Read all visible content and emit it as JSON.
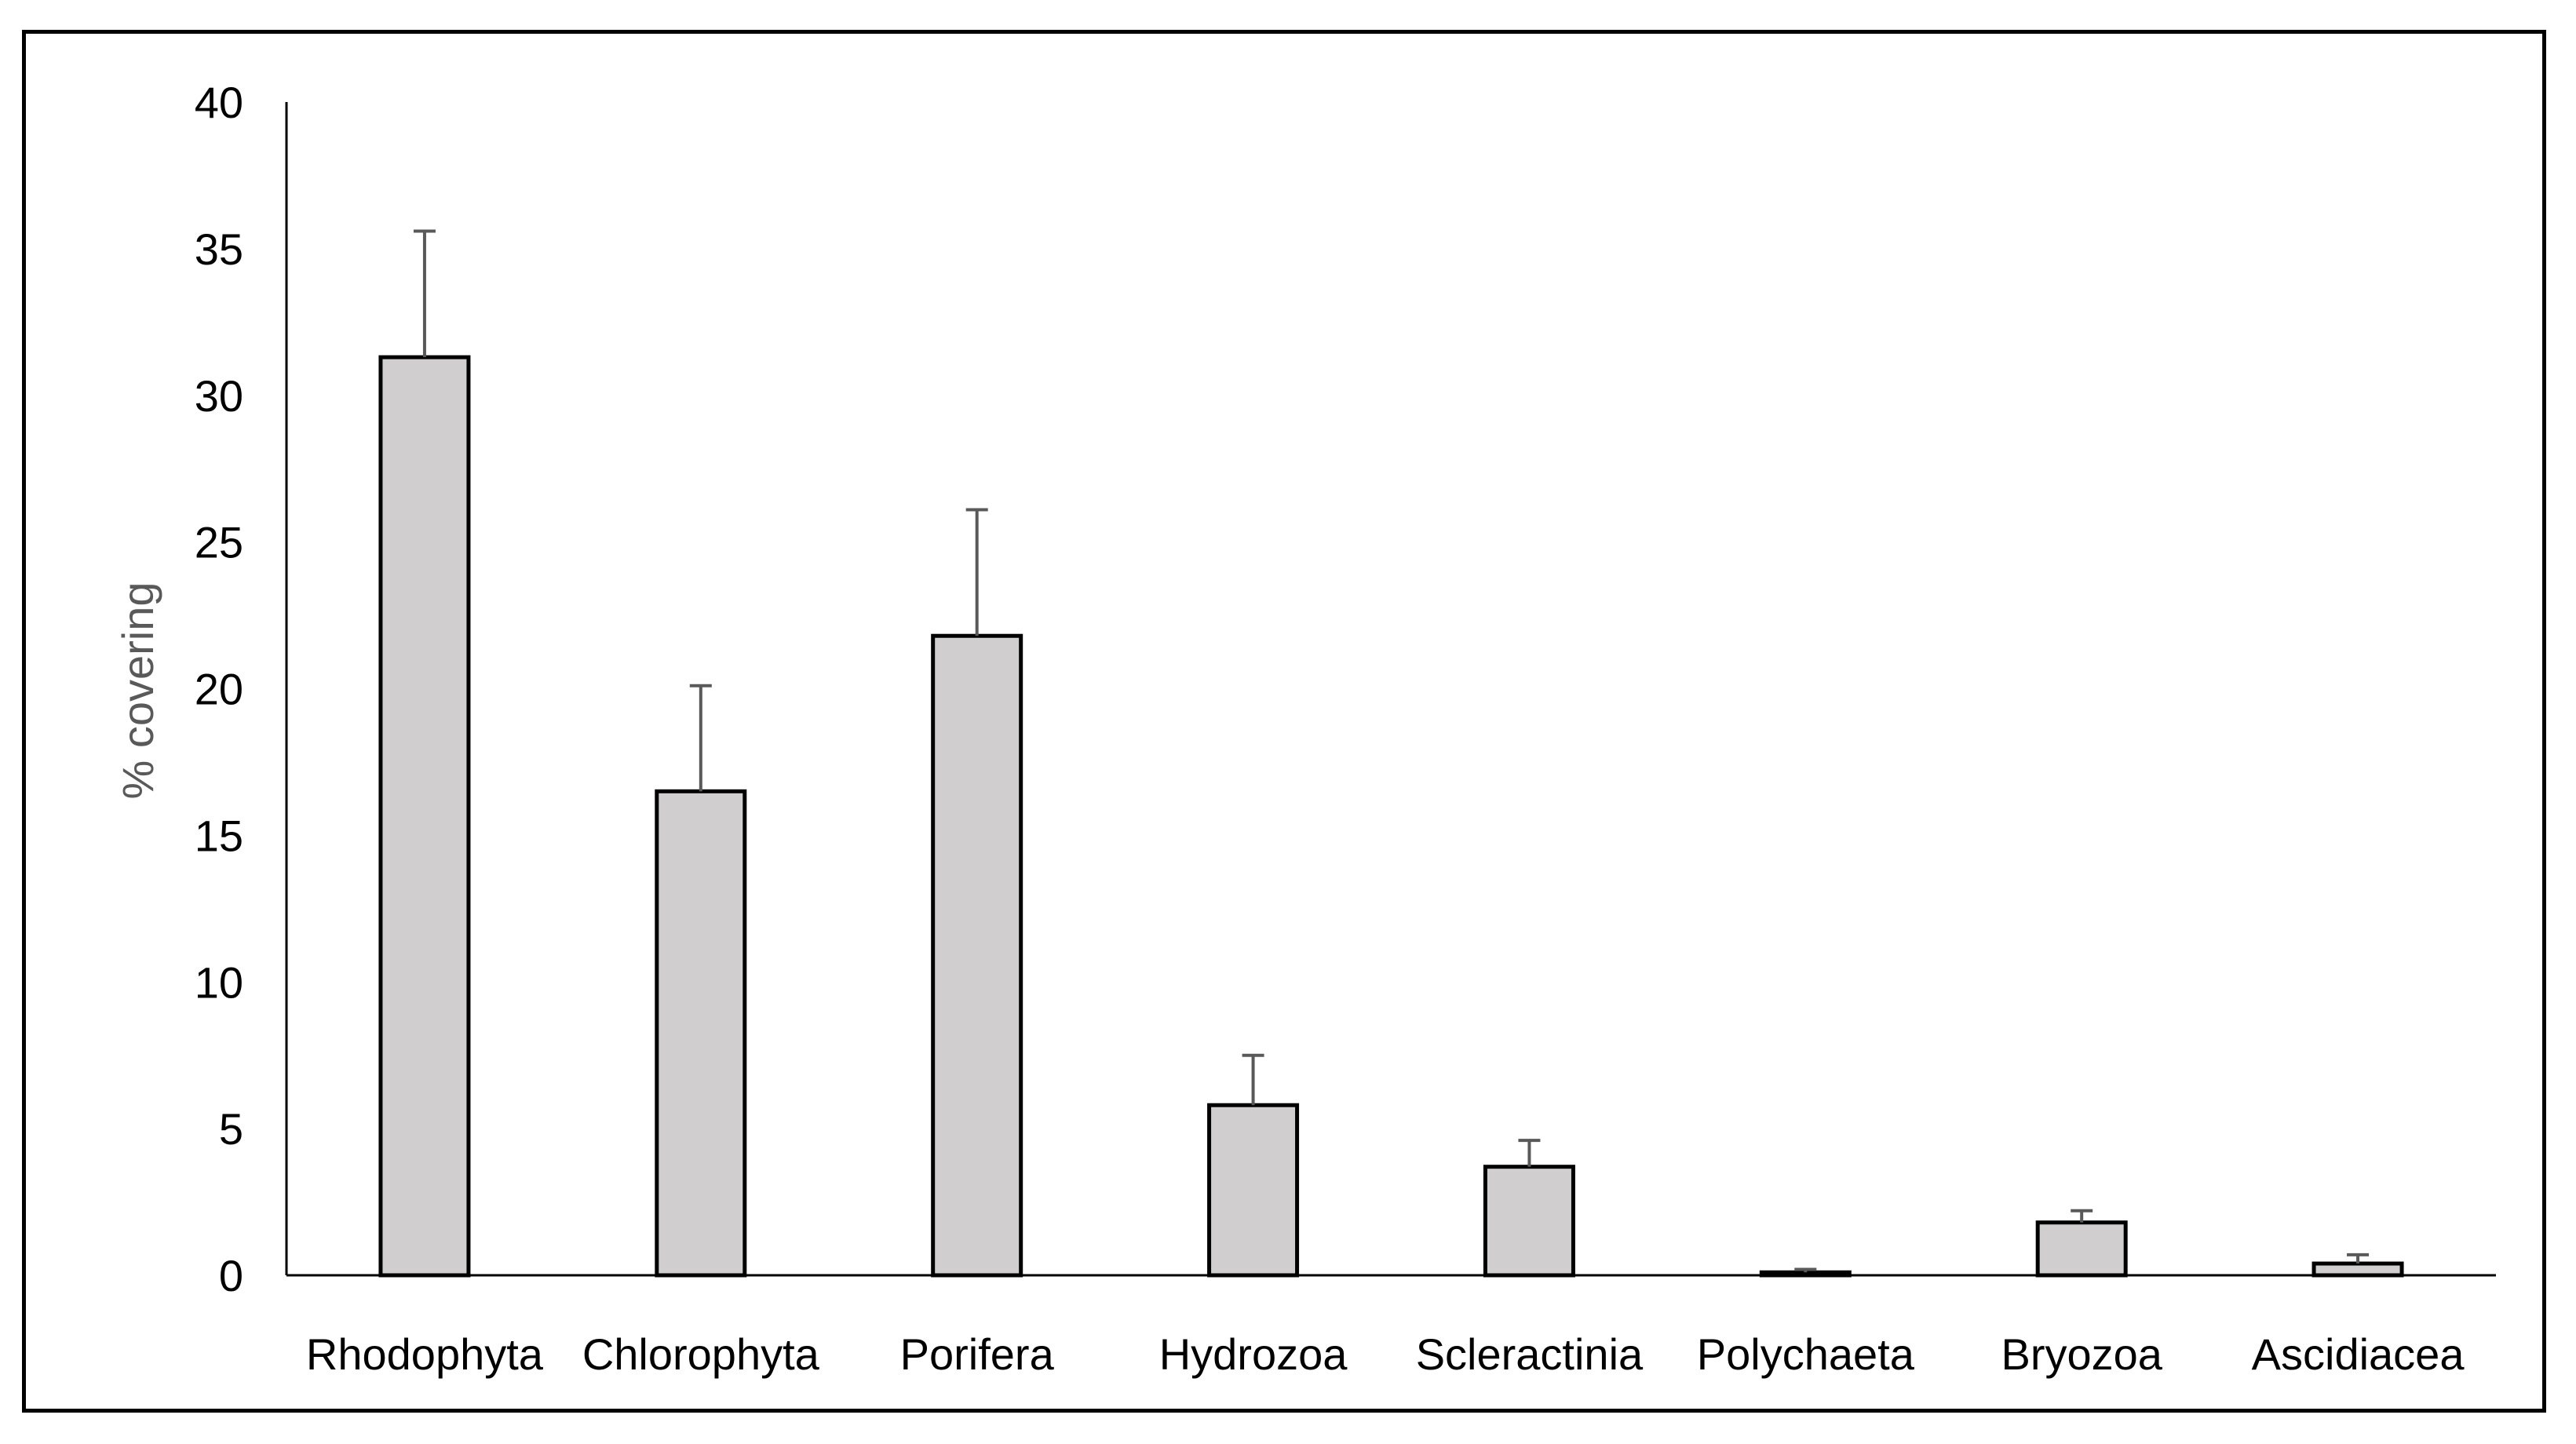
{
  "chart_data": {
    "type": "bar",
    "title": "",
    "xlabel": "",
    "ylabel": "% covering",
    "ylim": [
      0,
      40
    ],
    "yticks": [
      0,
      5,
      10,
      15,
      20,
      25,
      30,
      35,
      40
    ],
    "grid": false,
    "legend": "none",
    "categories": [
      "Rhodophyta",
      "Chlorophyta",
      "Porifera",
      "Hydrozoa",
      "Scleractinia",
      "Polychaeta",
      "Bryozoa",
      "Ascidiacea"
    ],
    "series": [
      {
        "values": [
          31.3,
          16.5,
          21.8,
          5.8,
          3.7,
          0.1,
          1.8,
          0.4
        ],
        "error_plus": [
          4.3,
          3.6,
          4.3,
          1.7,
          0.9,
          0.1,
          0.4,
          0.3
        ]
      }
    ],
    "colors": {
      "bar_fill": "#d0cece",
      "bar_stroke": "#000000",
      "error_bar": "#595959",
      "axis": "#000000"
    }
  }
}
